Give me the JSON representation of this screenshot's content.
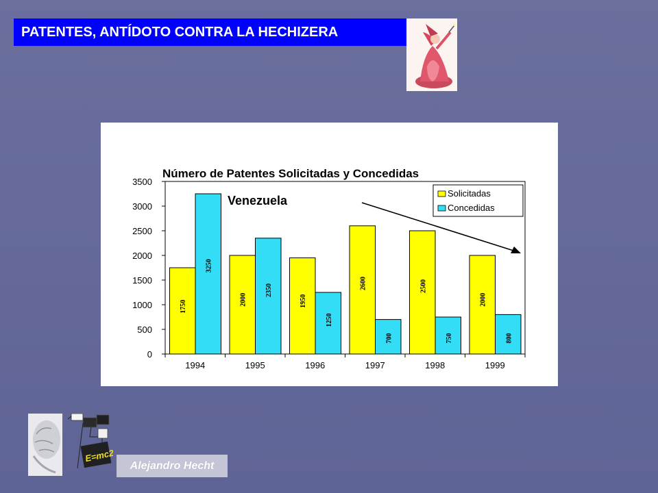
{
  "slide": {
    "title": "PATENTES, ANTÍDOTO CONTRA LA HECHIZERA",
    "author": "Alejandro Hecht",
    "brain_formula": "E=mc2",
    "colors": {
      "background": "#62679a",
      "title_bg": "#0000ff",
      "title_text": "#ffffff"
    }
  },
  "chart_data": {
    "type": "bar",
    "title": "Número de Patentes Solicitadas y Concedidas",
    "subtitle": "Venezuela",
    "categories": [
      "1994",
      "1995",
      "1996",
      "1997",
      "1998",
      "1999"
    ],
    "series": [
      {
        "name": "Solicitadas",
        "values": [
          1750,
          2000,
          1950,
          2600,
          2500,
          2000
        ],
        "color": "#ffff00"
      },
      {
        "name": "Concedidas",
        "values": [
          3250,
          2350,
          1250,
          700,
          750,
          800
        ],
        "color": "#33ddf5"
      }
    ],
    "ylim": [
      0,
      3500
    ],
    "yticks": [
      0,
      500,
      1000,
      1500,
      2000,
      2500,
      3000,
      3500
    ],
    "legend": "top-right",
    "grid": false,
    "data_labels": true,
    "annotation": "downward trend arrow"
  }
}
